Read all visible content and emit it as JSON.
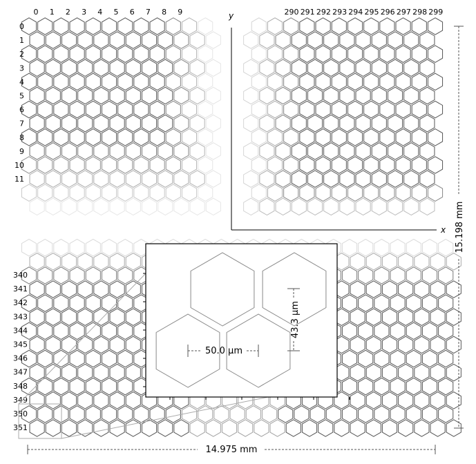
{
  "col_labels_left": [
    "0",
    "1",
    "2",
    "3",
    "4",
    "5",
    "6",
    "7",
    "8",
    "9"
  ],
  "col_labels_right": [
    "290",
    "291",
    "292",
    "293",
    "294",
    "295",
    "296",
    "297",
    "298",
    "299"
  ],
  "row_labels_top": [
    "0",
    "1",
    "2",
    "3",
    "4",
    "5",
    "6",
    "7",
    "8",
    "9",
    "10",
    "11"
  ],
  "row_labels_bottom": [
    "340",
    "341",
    "342",
    "343",
    "344",
    "345",
    "346",
    "347",
    "348",
    "349",
    "350",
    "351"
  ],
  "axes": {
    "x": "x",
    "y": "y"
  },
  "dimensions": {
    "width": "14.975 mm",
    "height": "15.198 mm"
  },
  "inset": {
    "pitch": "50.0 μm",
    "row_spacing": "43.3 μm"
  },
  "colors": {
    "hex_stroke": "#555555",
    "guide": "#aaaaaa"
  }
}
